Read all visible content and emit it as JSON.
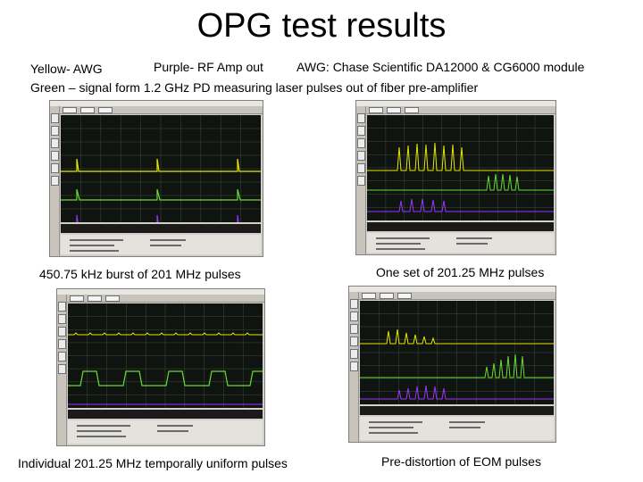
{
  "slide": {
    "title": "OPG test results",
    "legend_line1_yellow": "Yellow- AWG",
    "legend_line1_purple": "Purple- RF Amp out",
    "legend_line1_awg": "AWG: Chase Scientific DA12000 & CG6000 module",
    "legend_line2": "Green – signal form 1.2 GHz PD measuring laser pulses out of fiber pre-amplifier"
  },
  "panels": [
    {
      "caption": "450.75 kHz burst of 201 MHz pulses"
    },
    {
      "caption": "One set of 201.25 MHz pulses"
    },
    {
      "caption": "Individual 201.25 MHz temporally uniform pulses"
    },
    {
      "caption": "Pre-distortion of EOM pulses"
    }
  ],
  "colors": {
    "yellow_trace": "#e6e600",
    "green_trace": "#66dd33",
    "purple_trace": "#9933ff",
    "grid": "#3a4a3a",
    "screen_bg": "#101410"
  }
}
